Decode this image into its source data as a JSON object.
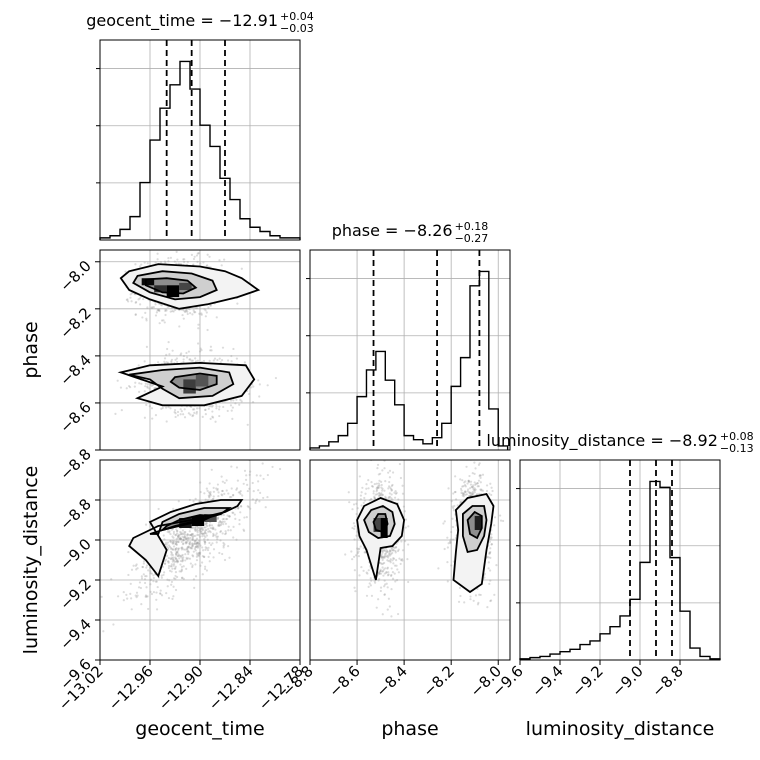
{
  "chart_data": {
    "type": "corner",
    "parameters": [
      "geocent_time",
      "phase",
      "luminosity_distance"
    ],
    "titles": {
      "geocent_time": {
        "prefix": "geocent_time = ",
        "median": "−12.91",
        "plus": "+0.04",
        "minus": "−0.03"
      },
      "phase": {
        "prefix": "phase = ",
        "median": "−8.26",
        "plus": "+0.18",
        "minus": "−0.27"
      },
      "luminosity_distance": {
        "prefix": "luminosity_distance = ",
        "median": "−8.92",
        "plus": "+0.08",
        "minus": "−0.13"
      }
    },
    "ranges": {
      "geocent_time": [
        -13.02,
        -12.78
      ],
      "phase": [
        -8.8,
        -7.95
      ],
      "luminosity_distance": [
        -9.6,
        -8.6
      ]
    },
    "ticks": {
      "geocent_time": {
        "values": [
          -13.02,
          -12.96,
          -12.9,
          -12.84,
          -12.78
        ],
        "labels": [
          "−13.02",
          "−12.96",
          "−12.90",
          "−12.84",
          "−12.78"
        ]
      },
      "phase": {
        "values": [
          -8.8,
          -8.6,
          -8.4,
          -8.2,
          -8.0
        ],
        "labels": [
          "−8.8",
          "−8.6",
          "−8.4",
          "−8.2",
          "−8.0"
        ]
      },
      "luminosity_distance": {
        "values": [
          -9.6,
          -9.4,
          -9.2,
          -9.0,
          -8.8
        ],
        "labels": [
          "−9.6",
          "−9.4",
          "−9.2",
          "−9.0",
          "−8.8"
        ]
      }
    },
    "quantiles": {
      "geocent_time": [
        -12.94,
        -12.91,
        -12.87
      ],
      "phase": [
        -8.53,
        -8.26,
        -8.08
      ],
      "luminosity_distance": [
        -9.05,
        -8.92,
        -8.84
      ]
    },
    "histograms": {
      "geocent_time": {
        "edges": [
          -13.02,
          -13.008,
          -12.996,
          -12.984,
          -12.972,
          -12.96,
          -12.948,
          -12.936,
          -12.924,
          -12.912,
          -12.9,
          -12.888,
          -12.876,
          -12.864,
          -12.852,
          -12.84,
          -12.828,
          -12.816,
          -12.804,
          -12.792,
          -12.78
        ],
        "counts": [
          1,
          2,
          5,
          11,
          27,
          47,
          62,
          73,
          84,
          71,
          54,
          44,
          29,
          19,
          10,
          6,
          4,
          2,
          1,
          1
        ]
      },
      "phase": {
        "edges": [
          -8.8,
          -8.76,
          -8.72,
          -8.68,
          -8.64,
          -8.6,
          -8.56,
          -8.52,
          -8.48,
          -8.44,
          -8.4,
          -8.36,
          -8.32,
          -8.28,
          -8.24,
          -8.2,
          -8.16,
          -8.12,
          -8.08,
          -8.04,
          -8.0,
          -7.96
        ],
        "counts": [
          1,
          2,
          4,
          7,
          13,
          26,
          39,
          48,
          34,
          22,
          7,
          5,
          3,
          6,
          13,
          31,
          45,
          80,
          87,
          20,
          2
        ]
      },
      "luminosity_distance": {
        "edges": [
          -9.6,
          -9.55,
          -9.5,
          -9.45,
          -9.4,
          -9.35,
          -9.3,
          -9.25,
          -9.2,
          -9.15,
          -9.1,
          -9.05,
          -9.0,
          -8.95,
          -8.9,
          -8.85,
          -8.8,
          -8.75,
          -8.7,
          -8.65,
          -8.6
        ],
        "counts": [
          1,
          2,
          3,
          5,
          7,
          9,
          13,
          16,
          22,
          28,
          37,
          51,
          82,
          150,
          145,
          86,
          41,
          10,
          3,
          1
        ]
      }
    },
    "scatter_clusters": [
      {
        "x": "geocent_time",
        "y": "phase",
        "cx": -12.925,
        "cy": -8.11,
        "sx": 0.025,
        "sy": 0.06,
        "r": 0.0
      },
      {
        "x": "geocent_time",
        "y": "phase",
        "cx": -12.905,
        "cy": -8.52,
        "sx": 0.03,
        "sy": 0.06,
        "r": 0.0
      },
      {
        "x": "geocent_time",
        "y": "luminosity_distance",
        "cx": -12.91,
        "cy": -8.98,
        "sx": 0.035,
        "sy": 0.14,
        "r": 0.75
      },
      {
        "x": "phase",
        "y": "luminosity_distance",
        "cx": -8.5,
        "cy": -8.96,
        "sx": 0.045,
        "sy": 0.12,
        "r": 0.0
      },
      {
        "x": "phase",
        "y": "luminosity_distance",
        "cx": -8.11,
        "cy": -8.95,
        "sx": 0.04,
        "sy": 0.13,
        "r": 0.0
      }
    ],
    "contours": [
      {
        "x": "geocent_time",
        "y": "phase",
        "level": "outer",
        "points": [
          [
            -12.985,
            -8.04
          ],
          [
            -12.95,
            -8.01
          ],
          [
            -12.9,
            -8.02
          ],
          [
            -12.87,
            -8.04
          ],
          [
            -12.85,
            -8.07
          ],
          [
            -12.83,
            -8.12
          ],
          [
            -12.855,
            -8.15
          ],
          [
            -12.89,
            -8.18
          ],
          [
            -12.925,
            -8.2
          ],
          [
            -12.96,
            -8.16
          ],
          [
            -12.985,
            -8.12
          ],
          [
            -12.995,
            -8.07
          ]
        ]
      },
      {
        "x": "geocent_time",
        "y": "phase",
        "level": "mid",
        "points": [
          [
            -12.975,
            -8.06
          ],
          [
            -12.945,
            -8.04
          ],
          [
            -12.91,
            -8.05
          ],
          [
            -12.885,
            -8.08
          ],
          [
            -12.88,
            -8.12
          ],
          [
            -12.9,
            -8.15
          ],
          [
            -12.93,
            -8.16
          ],
          [
            -12.96,
            -8.13
          ],
          [
            -12.98,
            -8.09
          ]
        ]
      },
      {
        "x": "geocent_time",
        "y": "phase",
        "level": "inner",
        "points": [
          [
            -12.965,
            -8.075
          ],
          [
            -12.94,
            -8.07
          ],
          [
            -12.915,
            -8.08
          ],
          [
            -12.905,
            -8.11
          ],
          [
            -12.92,
            -8.135
          ],
          [
            -12.945,
            -8.13
          ],
          [
            -12.965,
            -8.1
          ]
        ]
      },
      {
        "x": "geocent_time",
        "y": "phase",
        "level": "outer",
        "points": [
          [
            -12.995,
            -8.47
          ],
          [
            -12.96,
            -8.44
          ],
          [
            -12.9,
            -8.43
          ],
          [
            -12.845,
            -8.44
          ],
          [
            -12.835,
            -8.5
          ],
          [
            -12.85,
            -8.57
          ],
          [
            -12.895,
            -8.61
          ],
          [
            -12.945,
            -8.61
          ],
          [
            -12.975,
            -8.58
          ],
          [
            -12.945,
            -8.53
          ]
        ]
      },
      {
        "x": "geocent_time",
        "y": "phase",
        "level": "mid",
        "points": [
          [
            -12.985,
            -8.48
          ],
          [
            -12.945,
            -8.46
          ],
          [
            -12.9,
            -8.45
          ],
          [
            -12.865,
            -8.47
          ],
          [
            -12.86,
            -8.52
          ],
          [
            -12.885,
            -8.57
          ],
          [
            -12.925,
            -8.58
          ],
          [
            -12.945,
            -8.54
          ],
          [
            -12.96,
            -8.5
          ]
        ]
      },
      {
        "x": "geocent_time",
        "y": "phase",
        "level": "inner",
        "points": [
          [
            -12.93,
            -8.49
          ],
          [
            -12.9,
            -8.475
          ],
          [
            -12.88,
            -8.485
          ],
          [
            -12.88,
            -8.52
          ],
          [
            -12.9,
            -8.545
          ],
          [
            -12.925,
            -8.535
          ],
          [
            -12.935,
            -8.51
          ]
        ]
      },
      {
        "x": "geocent_time",
        "y": "luminosity_distance",
        "level": "outer",
        "points": [
          [
            -12.98,
            -8.99
          ],
          [
            -12.95,
            -8.93
          ],
          [
            -12.91,
            -8.9
          ],
          [
            -12.87,
            -8.86
          ],
          [
            -12.855,
            -8.83
          ],
          [
            -12.85,
            -8.8
          ],
          [
            -12.875,
            -8.8
          ],
          [
            -12.905,
            -8.82
          ],
          [
            -12.935,
            -8.86
          ],
          [
            -12.96,
            -8.91
          ],
          [
            -12.94,
            -9.05
          ],
          [
            -12.95,
            -9.18
          ],
          [
            -12.965,
            -9.1
          ],
          [
            -12.985,
            -9.03
          ]
        ]
      },
      {
        "x": "geocent_time",
        "y": "luminosity_distance",
        "level": "mid",
        "points": [
          [
            -12.96,
            -8.97
          ],
          [
            -12.93,
            -8.93
          ],
          [
            -12.9,
            -8.9
          ],
          [
            -12.875,
            -8.87
          ],
          [
            -12.865,
            -8.84
          ],
          [
            -12.895,
            -8.84
          ],
          [
            -12.925,
            -8.87
          ],
          [
            -12.945,
            -8.91
          ],
          [
            -12.95,
            -8.97
          ]
        ]
      },
      {
        "x": "geocent_time",
        "y": "luminosity_distance",
        "level": "inner",
        "points": [
          [
            -12.945,
            -8.95
          ],
          [
            -12.92,
            -8.925
          ],
          [
            -12.895,
            -8.9
          ],
          [
            -12.885,
            -8.88
          ],
          [
            -12.9,
            -8.875
          ],
          [
            -12.925,
            -8.9
          ],
          [
            -12.94,
            -8.93
          ]
        ]
      },
      {
        "x": "phase",
        "y": "luminosity_distance",
        "level": "outer",
        "points": [
          [
            -8.6,
            -8.9
          ],
          [
            -8.57,
            -8.83
          ],
          [
            -8.5,
            -8.79
          ],
          [
            -8.43,
            -8.82
          ],
          [
            -8.4,
            -8.9
          ],
          [
            -8.41,
            -8.98
          ],
          [
            -8.45,
            -9.03
          ],
          [
            -8.5,
            -9.04
          ],
          [
            -8.52,
            -9.2
          ],
          [
            -8.56,
            -9.05
          ],
          [
            -8.59,
            -8.98
          ]
        ]
      },
      {
        "x": "phase",
        "y": "luminosity_distance",
        "level": "mid",
        "points": [
          [
            -8.57,
            -8.9
          ],
          [
            -8.54,
            -8.85
          ],
          [
            -8.49,
            -8.83
          ],
          [
            -8.45,
            -8.86
          ],
          [
            -8.44,
            -8.92
          ],
          [
            -8.46,
            -8.98
          ],
          [
            -8.51,
            -8.99
          ],
          [
            -8.55,
            -8.96
          ]
        ]
      },
      {
        "x": "phase",
        "y": "luminosity_distance",
        "level": "inner",
        "points": [
          [
            -8.53,
            -8.91
          ],
          [
            -8.51,
            -8.87
          ],
          [
            -8.48,
            -8.87
          ],
          [
            -8.47,
            -8.92
          ],
          [
            -8.49,
            -8.96
          ],
          [
            -8.52,
            -8.95
          ]
        ]
      },
      {
        "x": "phase",
        "y": "luminosity_distance",
        "level": "outer",
        "points": [
          [
            -8.18,
            -8.85
          ],
          [
            -8.13,
            -8.79
          ],
          [
            -8.05,
            -8.77
          ],
          [
            -8.02,
            -8.83
          ],
          [
            -8.03,
            -8.92
          ],
          [
            -8.05,
            -9.05
          ],
          [
            -8.07,
            -9.22
          ],
          [
            -8.12,
            -9.26
          ],
          [
            -8.19,
            -9.2
          ],
          [
            -8.18,
            -9.06
          ],
          [
            -8.17,
            -8.95
          ]
        ]
      },
      {
        "x": "phase",
        "y": "luminosity_distance",
        "level": "mid",
        "points": [
          [
            -8.15,
            -8.87
          ],
          [
            -8.11,
            -8.83
          ],
          [
            -8.06,
            -8.83
          ],
          [
            -8.05,
            -8.9
          ],
          [
            -8.06,
            -8.98
          ],
          [
            -8.09,
            -9.05
          ],
          [
            -8.13,
            -9.06
          ],
          [
            -8.15,
            -8.98
          ]
        ]
      },
      {
        "x": "phase",
        "y": "luminosity_distance",
        "level": "inner",
        "points": [
          [
            -8.13,
            -8.9
          ],
          [
            -8.1,
            -8.86
          ],
          [
            -8.07,
            -8.88
          ],
          [
            -8.07,
            -8.94
          ],
          [
            -8.09,
            -8.99
          ],
          [
            -8.12,
            -8.97
          ]
        ]
      }
    ],
    "density_cells": [
      {
        "x": "geocent_time",
        "y": "phase",
        "x0": -12.97,
        "x1": -12.955,
        "y0": -8.1,
        "y1": -8.07,
        "shade": 0.95
      },
      {
        "x": "geocent_time",
        "y": "phase",
        "x0": -12.94,
        "x1": -12.925,
        "y0": -8.15,
        "y1": -8.1,
        "shade": 1.0
      },
      {
        "x": "geocent_time",
        "y": "phase",
        "x0": -12.955,
        "x1": -12.94,
        "y0": -8.13,
        "y1": -8.1,
        "shade": 0.7
      },
      {
        "x": "geocent_time",
        "y": "phase",
        "x0": -12.925,
        "x1": -12.91,
        "y0": -8.12,
        "y1": -8.09,
        "shade": 0.55
      },
      {
        "x": "geocent_time",
        "y": "phase",
        "x0": -12.92,
        "x1": -12.905,
        "y0": -8.56,
        "y1": -8.5,
        "shade": 0.6
      },
      {
        "x": "geocent_time",
        "y": "phase",
        "x0": -12.905,
        "x1": -12.89,
        "y0": -8.53,
        "y1": -8.48,
        "shade": 0.45
      },
      {
        "x": "geocent_time",
        "y": "luminosity_distance",
        "x0": -12.91,
        "x1": -12.895,
        "y0": -8.93,
        "y1": -8.88,
        "shade": 1.0
      },
      {
        "x": "geocent_time",
        "y": "luminosity_distance",
        "x0": -12.925,
        "x1": -12.91,
        "y0": -8.94,
        "y1": -8.89,
        "shade": 0.85
      },
      {
        "x": "geocent_time",
        "y": "luminosity_distance",
        "x0": -12.895,
        "x1": -12.88,
        "y0": -8.91,
        "y1": -8.87,
        "shade": 0.5
      },
      {
        "x": "phase",
        "y": "luminosity_distance",
        "x0": -8.5,
        "x1": -8.47,
        "y0": -8.99,
        "y1": -8.89,
        "shade": 1.0
      },
      {
        "x": "phase",
        "y": "luminosity_distance",
        "x0": -8.53,
        "x1": -8.5,
        "y0": -8.96,
        "y1": -8.89,
        "shade": 0.55
      },
      {
        "x": "phase",
        "y": "luminosity_distance",
        "x0": -8.1,
        "x1": -8.07,
        "y0": -8.95,
        "y1": -8.88,
        "shade": 0.8
      }
    ],
    "grid": true
  }
}
